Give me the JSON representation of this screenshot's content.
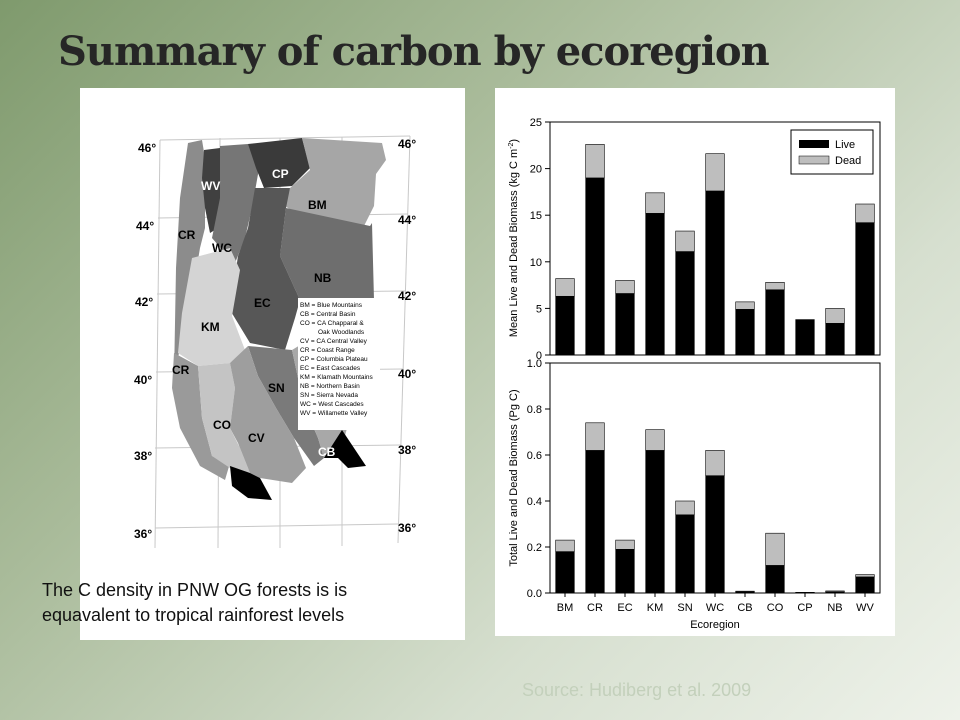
{
  "slide": {
    "title": "Summary of carbon by ecoregion",
    "caption_line1": "The C density in PNW OG forests is is",
    "caption_line2": "equavalent to tropical rainforest levels",
    "source": "Source: Hudiberg et al. 2009"
  },
  "map": {
    "lat_labels": [
      "46°",
      "44°",
      "42°",
      "40°",
      "38°",
      "36°"
    ],
    "region_labels": {
      "wv": "WV",
      "cp": "CP",
      "bm": "BM",
      "cr_north": "CR",
      "wc": "WC",
      "nb": "NB",
      "ec": "EC",
      "km": "KM",
      "cr_south": "CR",
      "sn": "SN",
      "co": "CO",
      "cv": "CV",
      "cb": "CB"
    },
    "legend": [
      "BM = Blue Mountains",
      "CB = Central Basin",
      "CO = CA Chapparal &",
      "Oak Woodlands",
      "CV = CA Central Valley",
      "CR = Coast Range",
      "CP = Columbia Plateau",
      "EC = East Cascades",
      "KM = Klamath Mountains",
      "NB = Northern Basin",
      "SN = Sierra Nevada",
      "WC = West Cascades",
      "WV = Willamette Valley"
    ]
  },
  "chart_data": [
    {
      "type": "bar",
      "stacked": true,
      "categories": [
        "BM",
        "CR",
        "EC",
        "KM",
        "SN",
        "WC",
        "CB",
        "CO",
        "CP",
        "NB",
        "WV"
      ],
      "series": [
        {
          "name": "Live",
          "color": "#000000",
          "values": [
            6.3,
            19.0,
            6.6,
            15.2,
            11.1,
            17.6,
            4.9,
            7.0,
            3.8,
            3.4,
            14.2
          ]
        },
        {
          "name": "Dead",
          "color": "#bebebe",
          "values": [
            1.9,
            3.6,
            1.4,
            2.2,
            2.2,
            4.0,
            0.8,
            0.8,
            0.0,
            1.6,
            2.0
          ]
        }
      ],
      "ylabel": "Mean Live and Dead Biomass (kg C m-2)",
      "ylabel_main": "Mean Live and Dead Biomass (kg C m",
      "ylabel_sup": "-2",
      "ylabel_end": ")",
      "ylim": [
        0,
        25
      ],
      "yticks": [
        "0",
        "5",
        "10",
        "15",
        "20",
        "25"
      ],
      "legend_position": "top-right"
    },
    {
      "type": "bar",
      "stacked": true,
      "categories": [
        "BM",
        "CR",
        "EC",
        "KM",
        "SN",
        "WC",
        "CB",
        "CO",
        "CP",
        "NB",
        "WV"
      ],
      "series": [
        {
          "name": "Live",
          "color": "#000000",
          "values": [
            0.18,
            0.62,
            0.19,
            0.62,
            0.34,
            0.51,
            0.005,
            0.12,
            0.002,
            0.005,
            0.07
          ]
        },
        {
          "name": "Dead",
          "color": "#bebebe",
          "values": [
            0.05,
            0.12,
            0.04,
            0.09,
            0.06,
            0.11,
            0.003,
            0.14,
            0.001,
            0.004,
            0.01
          ]
        }
      ],
      "ylabel": "Total Live and Dead Biomass (Pg C)",
      "xlabel": "Ecoregion",
      "ylim": [
        0,
        1.0
      ],
      "yticks": [
        "0.0",
        "0.2",
        "0.4",
        "0.6",
        "0.8",
        "1.0"
      ]
    }
  ]
}
